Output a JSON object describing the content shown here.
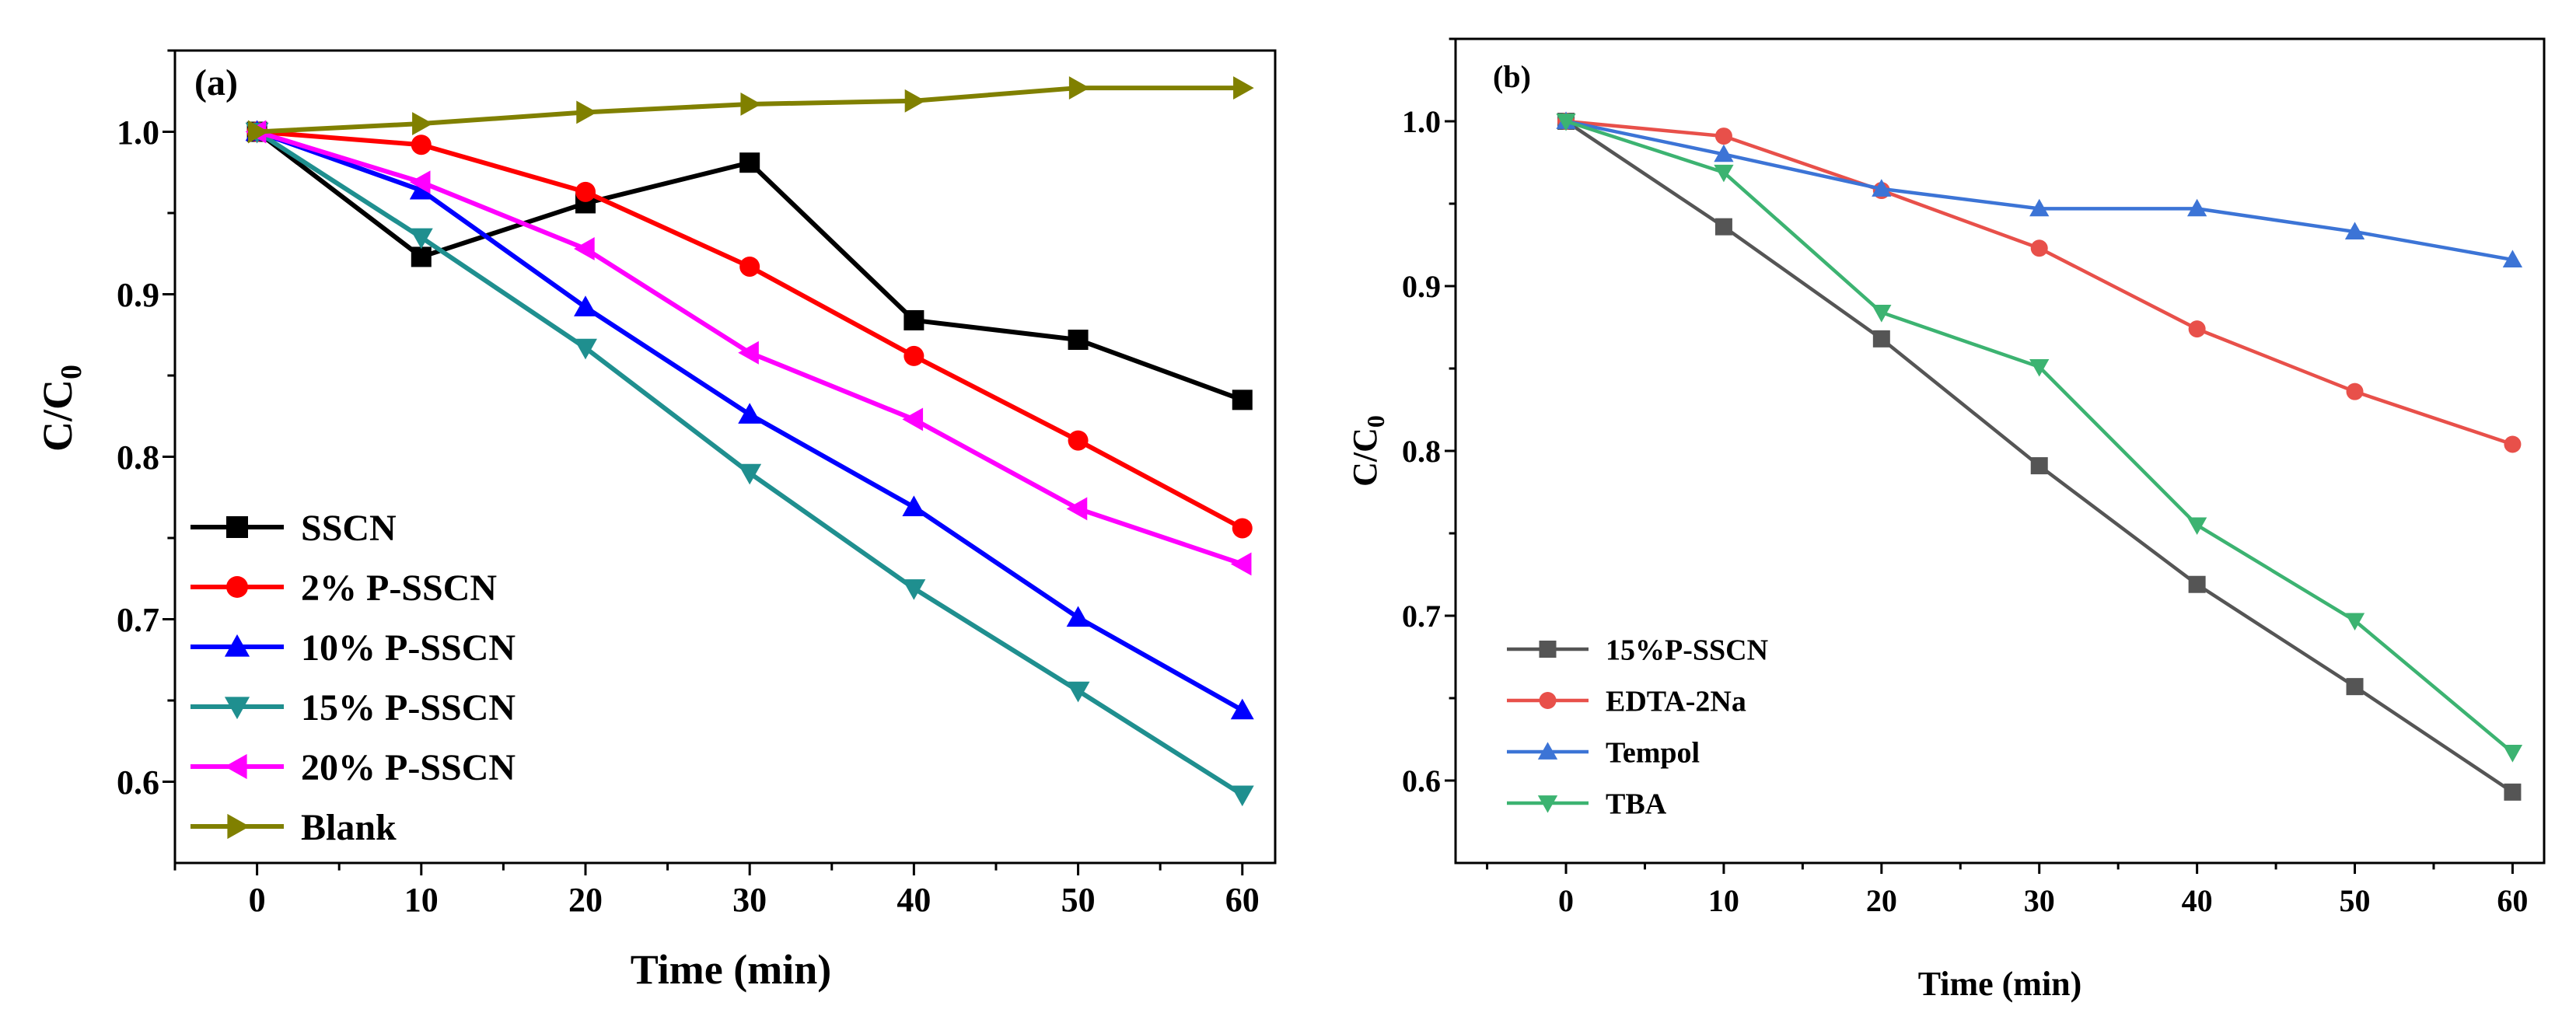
{
  "chart_data": [
    {
      "type": "line",
      "panel_label": "(a)",
      "title": "",
      "xlabel": "Time (min)",
      "ylabel_main": "C/C",
      "ylabel_sub": "0",
      "xlim": [
        -5,
        62
      ],
      "ylim": [
        0.55,
        1.05
      ],
      "xticks": [
        0,
        10,
        20,
        30,
        40,
        50,
        60
      ],
      "xtick_labels": [
        "0",
        "10",
        "20",
        "30",
        "40",
        "50",
        "60"
      ],
      "yticks": [
        0.6,
        0.7,
        0.8,
        0.9,
        1.0
      ],
      "ytick_labels": [
        "0.6",
        "0.7",
        "0.8",
        "0.9",
        "1.0"
      ],
      "grid": false,
      "legend_position": "bottom-left",
      "x": [
        0,
        10,
        20,
        30,
        40,
        50,
        60
      ],
      "series": [
        {
          "name": "SSCN",
          "color": "#000000",
          "marker": "square",
          "values": [
            1.0,
            0.923,
            0.956,
            0.981,
            0.884,
            0.872,
            0.835
          ]
        },
        {
          "name": "2% P-SSCN",
          "color": "#ff0000",
          "marker": "circle",
          "values": [
            1.0,
            0.992,
            0.963,
            0.917,
            0.862,
            0.81,
            0.756
          ]
        },
        {
          "name": "10% P-SSCN",
          "color": "#0000ff",
          "marker": "triangle-up",
          "values": [
            1.0,
            0.964,
            0.892,
            0.826,
            0.769,
            0.701,
            0.644
          ]
        },
        {
          "name": "15% P-SSCN",
          "color": "#1f8f8f",
          "marker": "triangle-down",
          "values": [
            1.0,
            0.935,
            0.867,
            0.79,
            0.719,
            0.656,
            0.592
          ]
        },
        {
          "name": "20% P-SSCN",
          "color": "#ff00ff",
          "marker": "triangle-left",
          "values": [
            1.0,
            0.969,
            0.928,
            0.864,
            0.823,
            0.768,
            0.734
          ]
        },
        {
          "name": "Blank",
          "color": "#808000",
          "marker": "triangle-right",
          "values": [
            1.0,
            1.005,
            1.012,
            1.017,
            1.019,
            1.027,
            1.027
          ]
        }
      ]
    },
    {
      "type": "line",
      "panel_label": "(b)",
      "title": "",
      "xlabel": "Time (min)",
      "ylabel_main": "C/C",
      "ylabel_sub": "0",
      "xlim": [
        -7,
        62
      ],
      "ylim": [
        0.55,
        1.05
      ],
      "xticks": [
        0,
        10,
        20,
        30,
        40,
        50,
        60
      ],
      "xtick_labels": [
        "0",
        "10",
        "20",
        "30",
        "40",
        "50",
        "60"
      ],
      "yticks": [
        0.6,
        0.7,
        0.8,
        0.9,
        1.0
      ],
      "ytick_labels": [
        "0.6",
        "0.7",
        "0.8",
        "0.9",
        "1.0"
      ],
      "grid": false,
      "legend_position": "bottom-left",
      "x": [
        0,
        10,
        20,
        30,
        40,
        50,
        60
      ],
      "series": [
        {
          "name": "15%P-SSCN",
          "color": "#555555",
          "marker": "square",
          "values": [
            1.0,
            0.936,
            0.868,
            0.791,
            0.719,
            0.657,
            0.593
          ]
        },
        {
          "name": "EDTA-2Na",
          "color": "#e8504a",
          "marker": "circle",
          "values": [
            1.0,
            0.991,
            0.958,
            0.923,
            0.874,
            0.836,
            0.804
          ]
        },
        {
          "name": "Tempol",
          "color": "#3c74d6",
          "marker": "triangle-up",
          "values": [
            1.0,
            0.98,
            0.959,
            0.947,
            0.947,
            0.933,
            0.916
          ]
        },
        {
          "name": "TBA",
          "color": "#3cb371",
          "marker": "triangle-down",
          "values": [
            1.0,
            0.969,
            0.884,
            0.851,
            0.755,
            0.697,
            0.617
          ]
        }
      ]
    }
  ]
}
